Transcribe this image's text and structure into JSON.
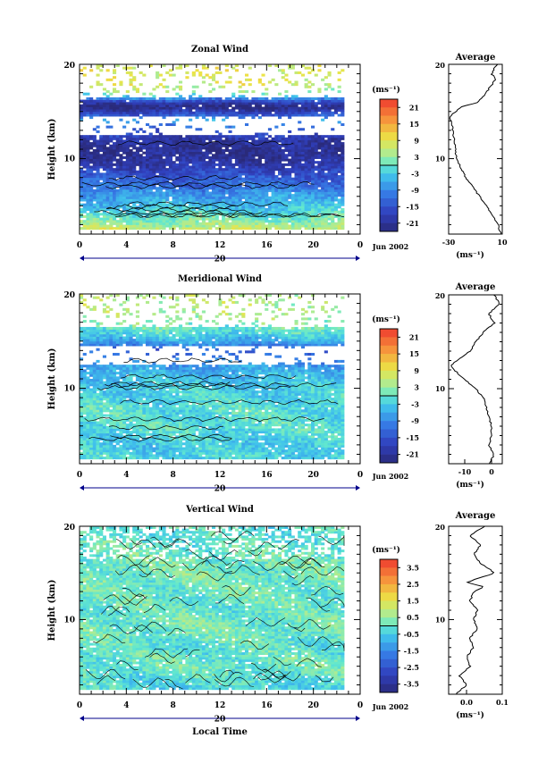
{
  "chart_data": [
    {
      "type": "heatmap",
      "title": "Zonal Wind",
      "ylabel": "Height (km)",
      "xlabel": "",
      "xlim": [
        0,
        24
      ],
      "ylim": [
        2,
        20
      ],
      "x_ticks": [
        "0",
        "4",
        "8",
        "12",
        "16",
        "20",
        "0"
      ],
      "y_ticks": [
        "10",
        "20"
      ],
      "date_label": "20",
      "month_label": "Jun 2002",
      "units": "(ms⁻¹)",
      "colorbar_ticks": [
        "21",
        "15",
        "9",
        "3",
        "-3",
        "-9",
        "-15",
        "-21"
      ],
      "colorbar_range": [
        -24,
        24
      ],
      "heights": [
        2.5,
        3,
        4,
        5,
        6,
        7,
        8,
        9,
        10,
        11,
        12,
        13,
        14,
        15,
        15.5,
        16,
        17,
        18
      ],
      "values": [
        7,
        4,
        0,
        -4,
        -7,
        -11,
        -14,
        -18,
        -21,
        -22,
        -20,
        -15,
        -6,
        -18,
        -24,
        -18,
        3,
        8
      ],
      "average": {
        "title": "Average",
        "xlabel": "(ms⁻¹)",
        "x_ticks": [
          "-30",
          "10"
        ],
        "xlim": [
          -30,
          10
        ],
        "heights": [
          2,
          3,
          4,
          5,
          6,
          7,
          8,
          9,
          10,
          11,
          12,
          13,
          14,
          14.5,
          15,
          15.5,
          16,
          17,
          18,
          18.5,
          19,
          20
        ],
        "values": [
          9,
          7,
          3,
          -2,
          -7,
          -12,
          -17,
          -21,
          -24,
          -25,
          -26,
          -27,
          -28,
          -29,
          -25,
          -20,
          -8,
          -2,
          3,
          5,
          2,
          6
        ]
      }
    },
    {
      "type": "heatmap",
      "title": "Meridional Wind",
      "ylabel": "Height (km)",
      "xlabel": "",
      "xlim": [
        0,
        24
      ],
      "ylim": [
        2,
        20
      ],
      "x_ticks": [
        "0",
        "4",
        "8",
        "12",
        "16",
        "20",
        "0"
      ],
      "y_ticks": [
        "10",
        "20"
      ],
      "date_label": "20",
      "month_label": "Jun 2002",
      "units": "(ms⁻¹)",
      "colorbar_ticks": [
        "21",
        "15",
        "9",
        "3",
        "-3",
        "-9",
        "-15",
        "-21"
      ],
      "colorbar_range": [
        -24,
        24
      ],
      "heights": [
        2.5,
        4,
        6,
        8,
        10,
        11,
        12,
        13,
        14,
        15,
        16,
        17,
        18
      ],
      "values": [
        -2,
        -3,
        -1,
        -1,
        -3,
        -4,
        -6,
        -9,
        -14,
        -6,
        -1,
        2,
        5
      ],
      "average": {
        "title": "Average",
        "xlabel": "(ms⁻¹)",
        "x_ticks": [
          "-10",
          "0"
        ],
        "xlim": [
          -16,
          4
        ],
        "heights": [
          2,
          3,
          4,
          5,
          6,
          7,
          8,
          9,
          10,
          11,
          12,
          12.5,
          13,
          14,
          15,
          16,
          17,
          18,
          19,
          20
        ],
        "values": [
          -1,
          1,
          -1,
          0,
          0,
          -1,
          -2,
          -3,
          -6,
          -10,
          -14,
          -15,
          -13,
          -8,
          -6,
          -3,
          1,
          -1,
          3,
          1
        ]
      }
    },
    {
      "type": "heatmap",
      "title": "Vertical Wind",
      "ylabel": "Height (km)",
      "xlabel": "Local Time",
      "xlim": [
        0,
        24
      ],
      "ylim": [
        2,
        20
      ],
      "x_ticks": [
        "0",
        "4",
        "8",
        "12",
        "16",
        "20",
        "0"
      ],
      "y_ticks": [
        "10",
        "20"
      ],
      "date_label": "20",
      "month_label": "Jun 2002",
      "units": "(ms⁻¹)",
      "colorbar_ticks": [
        "3.5",
        "2.5",
        "1.5",
        "0.5",
        "-0.5",
        "-1.5",
        "-2.5",
        "-3.5"
      ],
      "colorbar_range": [
        -4,
        4
      ],
      "heights": [
        3,
        5,
        7,
        9,
        11,
        13,
        15,
        17,
        19
      ],
      "values": [
        -0.3,
        0.1,
        -0.1,
        0.2,
        0.0,
        0.1,
        0.2,
        0.1,
        -0.1
      ],
      "average": {
        "title": "Average",
        "xlabel": "(ms⁻¹)",
        "x_ticks": [
          "0.0",
          "0.1"
        ],
        "xlim": [
          -0.05,
          0.1
        ],
        "heights": [
          2,
          3,
          4,
          5,
          6,
          7,
          8,
          9,
          10,
          11,
          12,
          13,
          13.5,
          14,
          14.5,
          15,
          16,
          17,
          18,
          19,
          20
        ],
        "values": [
          -0.03,
          0.0,
          -0.02,
          0.01,
          0.0,
          0.02,
          0.01,
          0.03,
          0.02,
          0.03,
          0.01,
          0.02,
          0.05,
          0.0,
          0.04,
          0.08,
          0.04,
          0.02,
          0.04,
          0.01,
          0.05
        ]
      }
    }
  ]
}
